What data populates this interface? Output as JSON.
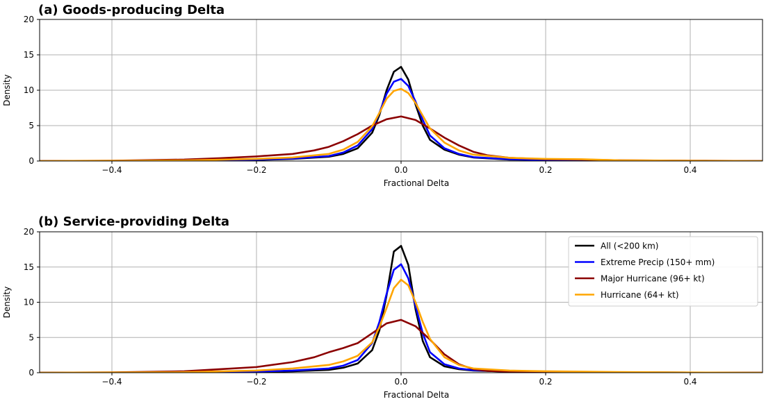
{
  "chart_data": [
    {
      "type": "line",
      "title": "(a) Goods-producing Delta",
      "xlabel": "Fractional Delta",
      "ylabel": "Density",
      "xlim": [
        -0.5,
        0.5
      ],
      "ylim": [
        0,
        20
      ],
      "xticks": [
        -0.4,
        -0.2,
        0.0,
        0.2,
        0.4
      ],
      "xtick_labels": [
        "−0.4",
        "−0.2",
        "0.0",
        "0.2",
        "0.4"
      ],
      "yticks": [
        0,
        5,
        10,
        15,
        20
      ],
      "ytick_labels": [
        "0",
        "5",
        "10",
        "15",
        "20"
      ],
      "grid": true,
      "legend": false,
      "series": [
        {
          "name": "All (<200 km)",
          "color": "#000000",
          "x": [
            -0.5,
            -0.4,
            -0.3,
            -0.2,
            -0.15,
            -0.1,
            -0.08,
            -0.06,
            -0.04,
            -0.03,
            -0.02,
            -0.01,
            0,
            0.01,
            0.02,
            0.03,
            0.04,
            0.06,
            0.08,
            0.1,
            0.15,
            0.2,
            0.3,
            0.4,
            0.5
          ],
          "y": [
            0,
            0.02,
            0.05,
            0.15,
            0.3,
            0.6,
            1.0,
            1.8,
            4.0,
            6.5,
            10.0,
            12.6,
            13.3,
            11.5,
            8.0,
            5.0,
            3.0,
            1.6,
            0.9,
            0.5,
            0.2,
            0.15,
            0.05,
            0.02,
            0
          ]
        },
        {
          "name": "Extreme Precip (150+ mm)",
          "color": "#0000ff",
          "x": [
            -0.5,
            -0.4,
            -0.3,
            -0.2,
            -0.15,
            -0.1,
            -0.08,
            -0.06,
            -0.04,
            -0.03,
            -0.02,
            -0.01,
            0,
            0.01,
            0.02,
            0.03,
            0.04,
            0.06,
            0.08,
            0.1,
            0.15,
            0.2,
            0.3,
            0.4,
            0.5
          ],
          "y": [
            0,
            0.02,
            0.05,
            0.2,
            0.35,
            0.7,
            1.2,
            2.2,
            4.5,
            6.8,
            9.5,
            11.2,
            11.6,
            10.6,
            8.4,
            5.8,
            3.6,
            1.8,
            1.0,
            0.55,
            0.25,
            0.15,
            0.05,
            0.02,
            0
          ]
        },
        {
          "name": "Major Hurricane (96+ kt)",
          "color": "#8b0000",
          "x": [
            -0.5,
            -0.4,
            -0.3,
            -0.25,
            -0.2,
            -0.15,
            -0.12,
            -0.1,
            -0.08,
            -0.06,
            -0.04,
            -0.02,
            0,
            0.02,
            0.04,
            0.06,
            0.08,
            0.1,
            0.12,
            0.15,
            0.2,
            0.25,
            0.3,
            0.4,
            0.5
          ],
          "y": [
            0,
            0.05,
            0.2,
            0.4,
            0.65,
            1.0,
            1.5,
            2.0,
            2.8,
            3.8,
            5.0,
            5.9,
            6.3,
            5.8,
            4.6,
            3.3,
            2.2,
            1.3,
            0.8,
            0.45,
            0.25,
            0.2,
            0.1,
            0.05,
            0
          ]
        },
        {
          "name": "Hurricane (64+ kt)",
          "color": "#ffa500",
          "x": [
            -0.5,
            -0.4,
            -0.3,
            -0.2,
            -0.15,
            -0.1,
            -0.08,
            -0.06,
            -0.04,
            -0.03,
            -0.02,
            -0.01,
            0,
            0.01,
            0.02,
            0.03,
            0.04,
            0.06,
            0.08,
            0.1,
            0.15,
            0.2,
            0.25,
            0.3,
            0.4,
            0.5
          ],
          "y": [
            0,
            0.03,
            0.08,
            0.3,
            0.5,
            1.0,
            1.6,
            2.7,
            4.9,
            6.8,
            8.8,
            9.9,
            10.2,
            9.6,
            8.2,
            6.4,
            4.6,
            2.6,
            1.5,
            0.9,
            0.45,
            0.3,
            0.25,
            0.1,
            0.03,
            0
          ]
        }
      ]
    },
    {
      "type": "line",
      "title": "(b) Service-providing Delta",
      "xlabel": "Fractional Delta",
      "ylabel": "Density",
      "xlim": [
        -0.5,
        0.5
      ],
      "ylim": [
        0,
        20
      ],
      "xticks": [
        -0.4,
        -0.2,
        0.0,
        0.2,
        0.4
      ],
      "xtick_labels": [
        "−0.4",
        "−0.2",
        "0.0",
        "0.2",
        "0.4"
      ],
      "yticks": [
        0,
        5,
        10,
        15,
        20
      ],
      "ytick_labels": [
        "0",
        "5",
        "10",
        "15",
        "20"
      ],
      "grid": true,
      "legend": true,
      "legend_position": "upper right",
      "series": [
        {
          "name": "All (<200 km)",
          "color": "#000000",
          "x": [
            -0.5,
            -0.4,
            -0.3,
            -0.2,
            -0.15,
            -0.1,
            -0.08,
            -0.06,
            -0.04,
            -0.03,
            -0.02,
            -0.01,
            0,
            0.01,
            0.02,
            0.03,
            0.04,
            0.06,
            0.08,
            0.1,
            0.15,
            0.2,
            0.3,
            0.4,
            0.5
          ],
          "y": [
            0,
            0.02,
            0.05,
            0.1,
            0.2,
            0.4,
            0.7,
            1.3,
            3.2,
            6.0,
            11.0,
            17.2,
            18.0,
            15.3,
            9.0,
            4.5,
            2.2,
            0.9,
            0.5,
            0.3,
            0.15,
            0.1,
            0.05,
            0.02,
            0
          ]
        },
        {
          "name": "Extreme Precip (150+ mm)",
          "color": "#0000ff",
          "x": [
            -0.5,
            -0.4,
            -0.3,
            -0.2,
            -0.15,
            -0.1,
            -0.08,
            -0.06,
            -0.04,
            -0.03,
            -0.02,
            -0.01,
            0,
            0.01,
            0.02,
            0.03,
            0.04,
            0.06,
            0.08,
            0.1,
            0.15,
            0.2,
            0.3,
            0.4,
            0.5
          ],
          "y": [
            0,
            0.02,
            0.05,
            0.15,
            0.3,
            0.6,
            1.0,
            1.8,
            4.2,
            7.2,
            11.2,
            14.6,
            15.4,
            13.4,
            9.5,
            5.6,
            2.9,
            1.2,
            0.6,
            0.35,
            0.15,
            0.1,
            0.05,
            0.02,
            0
          ]
        },
        {
          "name": "Major Hurricane (96+ kt)",
          "color": "#8b0000",
          "x": [
            -0.5,
            -0.4,
            -0.3,
            -0.25,
            -0.2,
            -0.15,
            -0.12,
            -0.1,
            -0.08,
            -0.06,
            -0.04,
            -0.02,
            0,
            0.02,
            0.04,
            0.06,
            0.08,
            0.1,
            0.12,
            0.15,
            0.2,
            0.3,
            0.4,
            0.5
          ],
          "y": [
            0,
            0.05,
            0.2,
            0.5,
            0.8,
            1.5,
            2.2,
            2.9,
            3.5,
            4.2,
            5.6,
            7.0,
            7.5,
            6.6,
            4.7,
            2.6,
            1.2,
            0.5,
            0.25,
            0.15,
            0.1,
            0.05,
            0.02,
            0
          ]
        },
        {
          "name": "Hurricane (64+ kt)",
          "color": "#ffa500",
          "x": [
            -0.5,
            -0.4,
            -0.3,
            -0.2,
            -0.15,
            -0.1,
            -0.08,
            -0.06,
            -0.04,
            -0.03,
            -0.02,
            -0.01,
            0,
            0.01,
            0.02,
            0.03,
            0.04,
            0.06,
            0.08,
            0.1,
            0.15,
            0.2,
            0.3,
            0.4,
            0.5
          ],
          "y": [
            0,
            0.03,
            0.08,
            0.3,
            0.6,
            1.1,
            1.6,
            2.4,
            4.3,
            6.5,
            9.2,
            12.0,
            13.2,
            12.4,
            10.0,
            7.2,
            4.8,
            2.2,
            1.1,
            0.6,
            0.3,
            0.2,
            0.1,
            0.03,
            0
          ]
        }
      ]
    }
  ]
}
